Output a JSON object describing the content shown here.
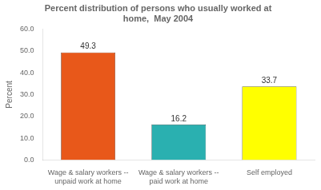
{
  "chart_data": {
    "type": "bar",
    "title": "Percent distribution of persons who usually worked at\nhome,  May 2004",
    "categories": [
      "Wage & salary workers --\nunpaid work at home",
      "Wage & salary workers --\npaid work at home",
      "Self employed"
    ],
    "values": [
      49.3,
      16.2,
      33.7
    ],
    "colors": [
      "#e8581a",
      "#2ab0b0",
      "#ffff00"
    ],
    "ylabel": "Percent",
    "ylim": [
      0,
      60
    ],
    "yticks": [
      {
        "value": 0,
        "label": "0.0"
      },
      {
        "value": 10,
        "label": "10.0"
      },
      {
        "value": 20,
        "label": "20.0"
      },
      {
        "value": 30,
        "label": "30.0"
      },
      {
        "value": 40,
        "label": "40.0"
      },
      {
        "value": 50,
        "label": "50.0"
      },
      {
        "value": 60,
        "label": "60.0"
      }
    ],
    "grid": false,
    "data_labels": true
  }
}
